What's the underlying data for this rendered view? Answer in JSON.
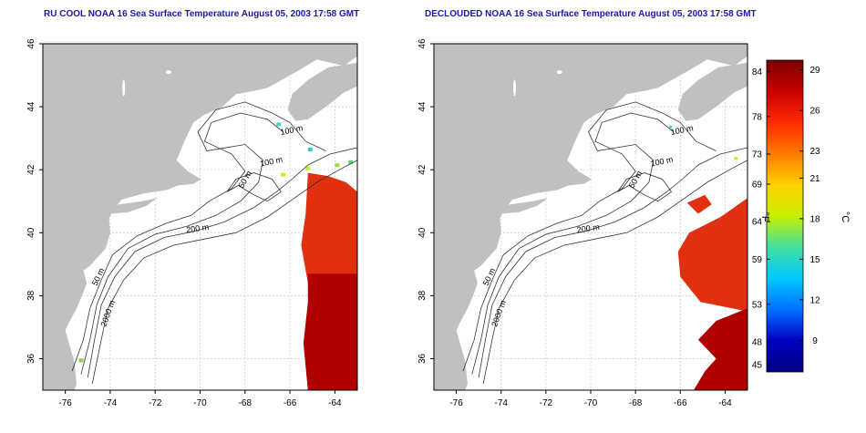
{
  "panels": [
    {
      "title": "RU COOL NOAA 16 Sea Surface Temperature August 05, 2003 17:58 GMT",
      "contours": [
        "100 m",
        "100 m",
        "50 m",
        "200 m",
        "50 m",
        "2000 m"
      ]
    },
    {
      "title": "DECLOUDED NOAA 16 Sea Surface Temperature August 05, 2003 17:58 GMT",
      "contours": [
        "100 m",
        "100 m",
        "50 m",
        "200 m",
        "50 m",
        "2000 m"
      ]
    }
  ],
  "axes": {
    "lon_ticks": [
      "-76",
      "-74",
      "-72",
      "-70",
      "-68",
      "-66",
      "-64"
    ],
    "lat_ticks": [
      "36",
      "38",
      "40",
      "42",
      "44",
      "46"
    ],
    "lon_range": [
      -77,
      -63
    ],
    "lat_range": [
      35,
      46
    ]
  },
  "colorbar": {
    "fahrenheit_ticks": [
      "84",
      "78",
      "73",
      "69",
      "64",
      "59",
      "53",
      "48",
      "45"
    ],
    "celsius_ticks": [
      "29",
      "26",
      "23",
      "21",
      "18",
      "15",
      "12",
      "9"
    ],
    "fahrenheit_label": "°F",
    "celsius_label": "°C",
    "colors": [
      "#7a0000",
      "#c80000",
      "#ff2a00",
      "#ff7a00",
      "#ffd000",
      "#c8f000",
      "#40e0a0",
      "#00c8ff",
      "#0070ff",
      "#0000c0",
      "#000080"
    ]
  },
  "colors": {
    "land": "#c0c0c0",
    "title": "#1a1aa8",
    "warm_water": "#e03010",
    "hot_water": "#b00000"
  }
}
